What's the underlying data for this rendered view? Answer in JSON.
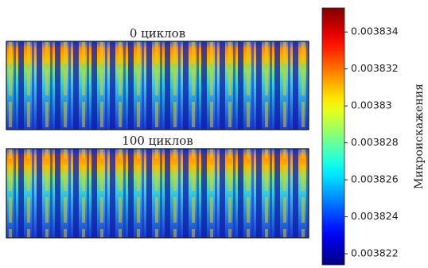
{
  "chart_data": {
    "type": "heatmap",
    "colormap": "jet",
    "panels": [
      {
        "title": "0 циклов"
      },
      {
        "title": "100 циклов"
      }
    ],
    "colorbar": {
      "label": "Микроискажения",
      "lim": [
        0.0038214,
        0.0038353
      ],
      "ticks": [
        0.003822,
        0.003824,
        0.003826,
        0.003828,
        0.00383,
        0.003832,
        0.003834
      ]
    }
  }
}
